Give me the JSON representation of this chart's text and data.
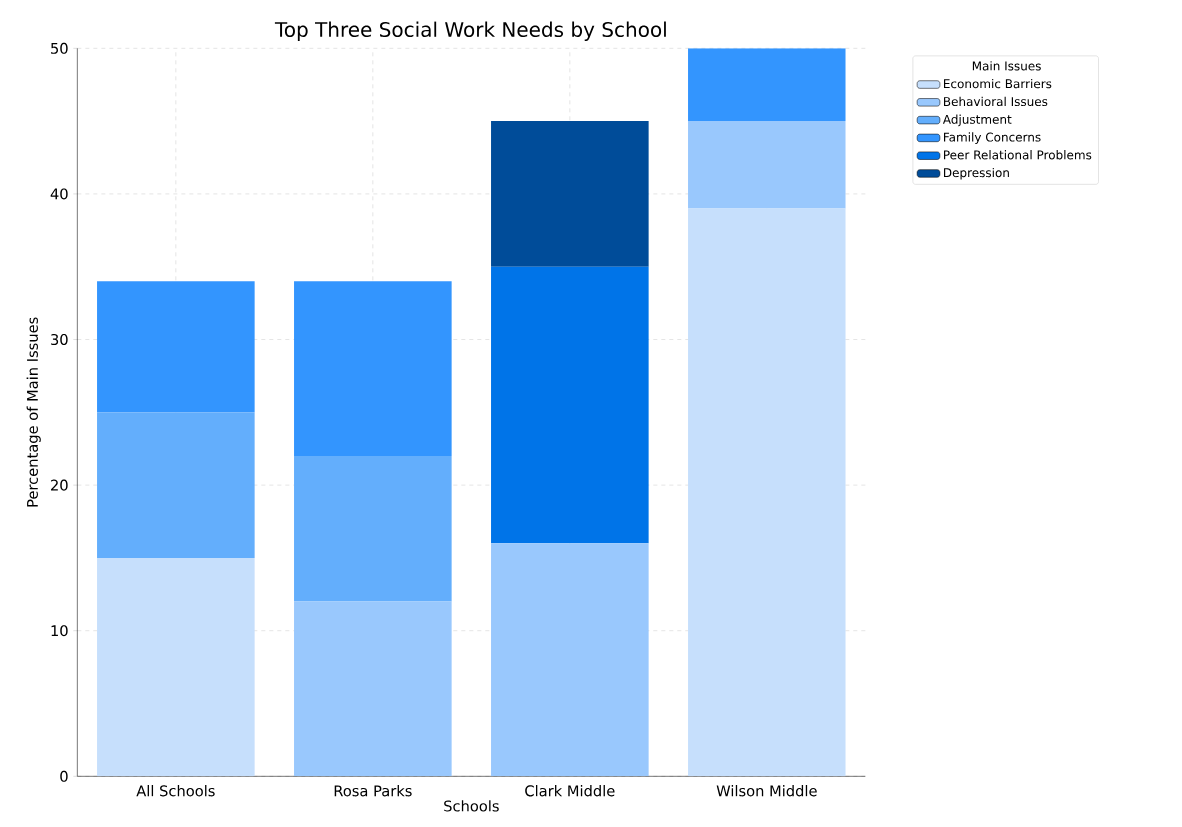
{
  "chart_data": {
    "type": "bar",
    "stacked": true,
    "title": "Top Three Social Work Needs by School",
    "xlabel": "Schools",
    "ylabel": "Percentage of Main Issues",
    "legend_title": "Main Issues",
    "categories": [
      "All Schools",
      "Rosa Parks",
      "Clark Middle",
      "Wilson Middle"
    ],
    "series": [
      {
        "name": "Economic Barriers",
        "color": "#c6dffc",
        "values": [
          15,
          null,
          null,
          39
        ]
      },
      {
        "name": "Behavioral Issues",
        "color": "#99c8fd",
        "values": [
          null,
          12,
          16,
          6
        ]
      },
      {
        "name": "Adjustment",
        "color": "#63aefc",
        "values": [
          10,
          10,
          null,
          null
        ]
      },
      {
        "name": "Family Concerns",
        "color": "#3395fe",
        "values": [
          9,
          12,
          null,
          5
        ]
      },
      {
        "name": "Peer Relational Problems",
        "color": "#0074e8",
        "values": [
          null,
          null,
          19,
          null
        ]
      },
      {
        "name": "Depression",
        "color": "#004c99",
        "values": [
          null,
          null,
          10,
          null
        ]
      }
    ],
    "ylim": [
      0,
      50
    ],
    "yticks": [
      0,
      10,
      20,
      30,
      40,
      50
    ],
    "grid": true,
    "legend": "top right"
  }
}
